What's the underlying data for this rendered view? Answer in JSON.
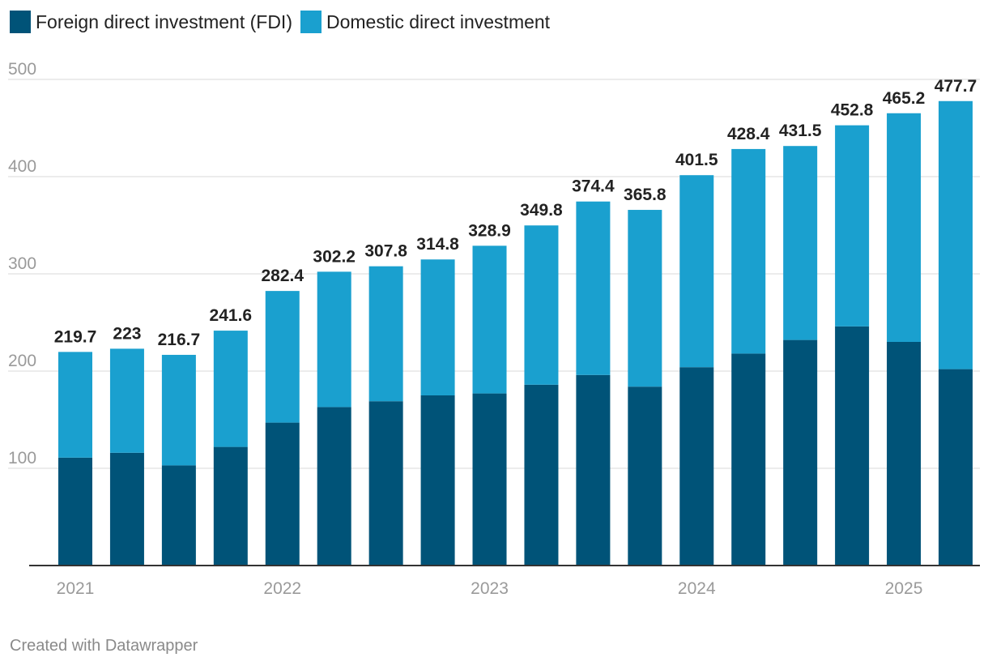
{
  "chart_data": {
    "type": "bar",
    "stacked": true,
    "title": "",
    "xlabel": "",
    "ylabel": "",
    "ylim": [
      0,
      500
    ],
    "yticks": [
      100,
      200,
      300,
      400,
      500
    ],
    "legend_position": "top-left",
    "categories": [
      "2021 Q1",
      "2021 Q2",
      "2021 Q3",
      "2021 Q4",
      "2022 Q1",
      "2022 Q2",
      "2022 Q3",
      "2022 Q4",
      "2023 Q1",
      "2023 Q2",
      "2023 Q3",
      "2023 Q4",
      "2024 Q1",
      "2024 Q2",
      "2024 Q3",
      "2024 Q4",
      "2025 Q1",
      "2025 Q2"
    ],
    "x_tick_labels": [
      {
        "label": "2021",
        "index": 0
      },
      {
        "label": "2022",
        "index": 4
      },
      {
        "label": "2023",
        "index": 8
      },
      {
        "label": "2024",
        "index": 12
      },
      {
        "label": "2025",
        "index": 16
      }
    ],
    "series": [
      {
        "name": "Foreign direct investment (FDI)",
        "color": "#005378",
        "values": [
          111,
          116,
          103,
          122,
          147,
          163,
          169,
          175,
          177,
          186,
          196,
          184,
          204,
          218,
          232,
          246,
          230,
          202
        ]
      },
      {
        "name": "Domestic direct investment",
        "color": "#1aa0cf",
        "values": [
          108.7,
          107,
          113.7,
          119.6,
          135.4,
          139.2,
          138.8,
          139.8,
          151.9,
          163.8,
          178.4,
          181.8,
          197.5,
          210.4,
          199.5,
          206.8,
          235.2,
          275.7
        ]
      }
    ],
    "totals": [
      "219.7",
      "223",
      "216.7",
      "241.6",
      "282.4",
      "302.2",
      "307.8",
      "314.8",
      "328.9",
      "349.8",
      "374.4",
      "365.8",
      "401.5",
      "428.4",
      "431.5",
      "452.8",
      "465.2",
      "477.7"
    ]
  },
  "footer": {
    "credit": "Created with Datawrapper"
  }
}
